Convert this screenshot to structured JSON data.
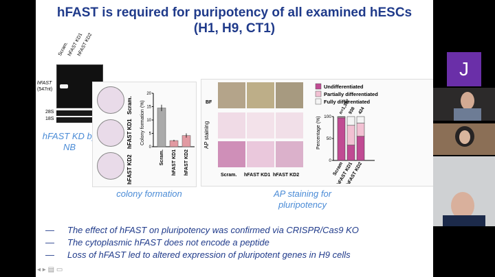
{
  "slide": {
    "title_line1": "hFAST is required for puripotency of all examined hESCs",
    "title_line2": "(H1, H9, CT1)",
    "northern": {
      "lanes": [
        "Scram.",
        "hFAST KD1",
        "hFAST KD2"
      ],
      "label": "hFAST",
      "label_size": "(547nt)",
      "rrna_28": "28S",
      "rrna_18": "18S",
      "caption": "hFAST KD by NB"
    },
    "colony": {
      "dish_labels": [
        "Scram.",
        "hFAST KD1",
        "hFAST KD2"
      ],
      "caption": "colony formation"
    },
    "ap": {
      "row_labels": [
        "BF",
        "AP staining"
      ],
      "col_labels": [
        "Scram.",
        "hFAST KD1",
        "hFAST KD2"
      ],
      "caption": "AP staining for pluripotency"
    },
    "bullets": [
      "The effect of hFAST on pluripotency was confirmed via CRISPR/Cas9 KO",
      "The cytoplasmic hFAST does not encode a peptide",
      "Loss of hFAST led to altered expression of pluripotent genes in H9 cells"
    ]
  },
  "chart_data": [
    {
      "type": "bar",
      "ylabel": "Colony formation (%)",
      "categories": [
        "Scram.",
        "hFAST KD1",
        "hFAST KD2"
      ],
      "values": [
        14.5,
        2.3,
        4.2
      ],
      "errors": [
        1.2,
        0.3,
        0.8
      ],
      "colors": [
        "#aaaaaa",
        "#e29aa2",
        "#e29aa2"
      ],
      "ylim": [
        0,
        20
      ],
      "yticks": [
        "0",
        "5",
        "10",
        "15",
        "20"
      ]
    },
    {
      "type": "bar",
      "stacked": true,
      "ylabel": "Percentage (%)",
      "categories": [
        "Scram",
        "hFAST KD1",
        "hFAST KD2"
      ],
      "n_labels": [
        "n=1,397",
        "938",
        "424"
      ],
      "ylim": [
        0,
        100
      ],
      "yticks": [
        "0",
        "50",
        "100"
      ],
      "series": [
        {
          "name": "Undifferentiated",
          "color": "#c04b93",
          "values": [
            97,
            35,
            55
          ]
        },
        {
          "name": "Partially differentiated",
          "color": "#f2c1d3",
          "values": [
            2,
            45,
            30
          ]
        },
        {
          "name": "Fully differentiated",
          "color": "#f4f4f4",
          "values": [
            1,
            20,
            15
          ]
        }
      ]
    }
  ],
  "participants": {
    "avatar_letter": "J",
    "avatar_color": "#6a2fa8"
  }
}
